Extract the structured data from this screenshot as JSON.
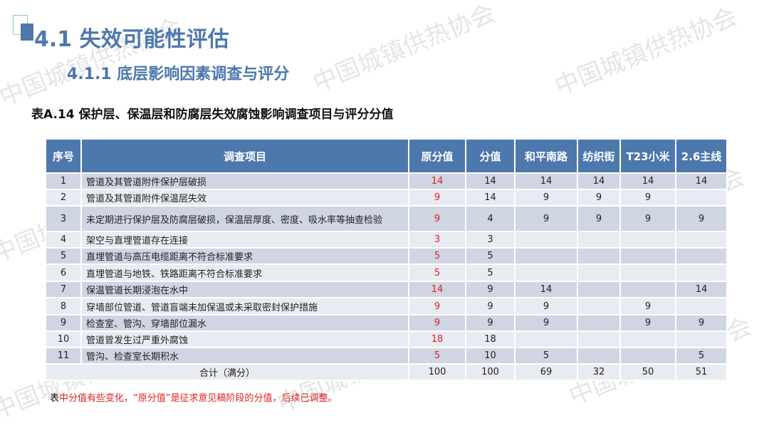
{
  "watermark": "中国城镇供热协会",
  "heading": "4.1 失效可能性评估",
  "subheading": "4.1.1 底层影响因素调查与评分",
  "caption": "表A.14  保护层、保温层和防腐层失效腐蚀影响调查项目与评分分值",
  "columns": [
    "序号",
    "调查项目",
    "原分值",
    "分值",
    "和平南路",
    "纺织街",
    "T23小米",
    "2.6主线"
  ],
  "rows": [
    [
      "1",
      "管道及其管道附件保护层破损",
      "14",
      "14",
      "14",
      "14",
      "14",
      "14"
    ],
    [
      "2",
      "管道及其管道附件保温层失效",
      "9",
      "14",
      "9",
      "9",
      "9",
      ""
    ],
    [
      "3",
      "未定期进行保护层及防腐层破损，保温层厚度、密度、吸水率等抽查检验",
      "9",
      "4",
      "9",
      "9",
      "9",
      "9"
    ],
    [
      "4",
      "架空与直埋管道存在连接",
      "3",
      "3",
      "",
      "",
      "",
      ""
    ],
    [
      "5",
      "直埋管道与高压电缆距离不符合标准要求",
      "5",
      "5",
      "",
      "",
      "",
      ""
    ],
    [
      "6",
      "直埋管道与地铁、铁路距离不符合标准要求",
      "5",
      "5",
      "",
      "",
      "",
      ""
    ],
    [
      "7",
      "保温管道长期浸泡在水中",
      "14",
      "9",
      "14",
      "",
      "",
      "14"
    ],
    [
      "8",
      "穿墙部位管道、管道盲端未加保温或未采取密封保护措施",
      "9",
      "9",
      "9",
      "",
      "9",
      ""
    ],
    [
      "9",
      "检查室、管沟、穿墙部位漏水",
      "9",
      "9",
      "9",
      "",
      "9",
      "9"
    ],
    [
      "10",
      "管道曾发生过严重外腐蚀",
      "18",
      "18",
      "",
      "",
      "",
      ""
    ],
    [
      "11",
      "管沟、检查室长期积水",
      "5",
      "10",
      "5",
      "",
      "",
      "5"
    ]
  ],
  "total": {
    "label": "合计（满分）",
    "values": [
      "100",
      "100",
      "69",
      "32",
      "50",
      "51"
    ]
  },
  "note": {
    "prefix": "表",
    "text": "中分值有些变化，“原分值”是征求意见稿阶段的分值，后续已调整。"
  },
  "colors": {
    "accent": "#4d78ad",
    "original_score": "#e02020",
    "row_dark": "#cfd5e3",
    "row_light": "#e9ebf2"
  }
}
